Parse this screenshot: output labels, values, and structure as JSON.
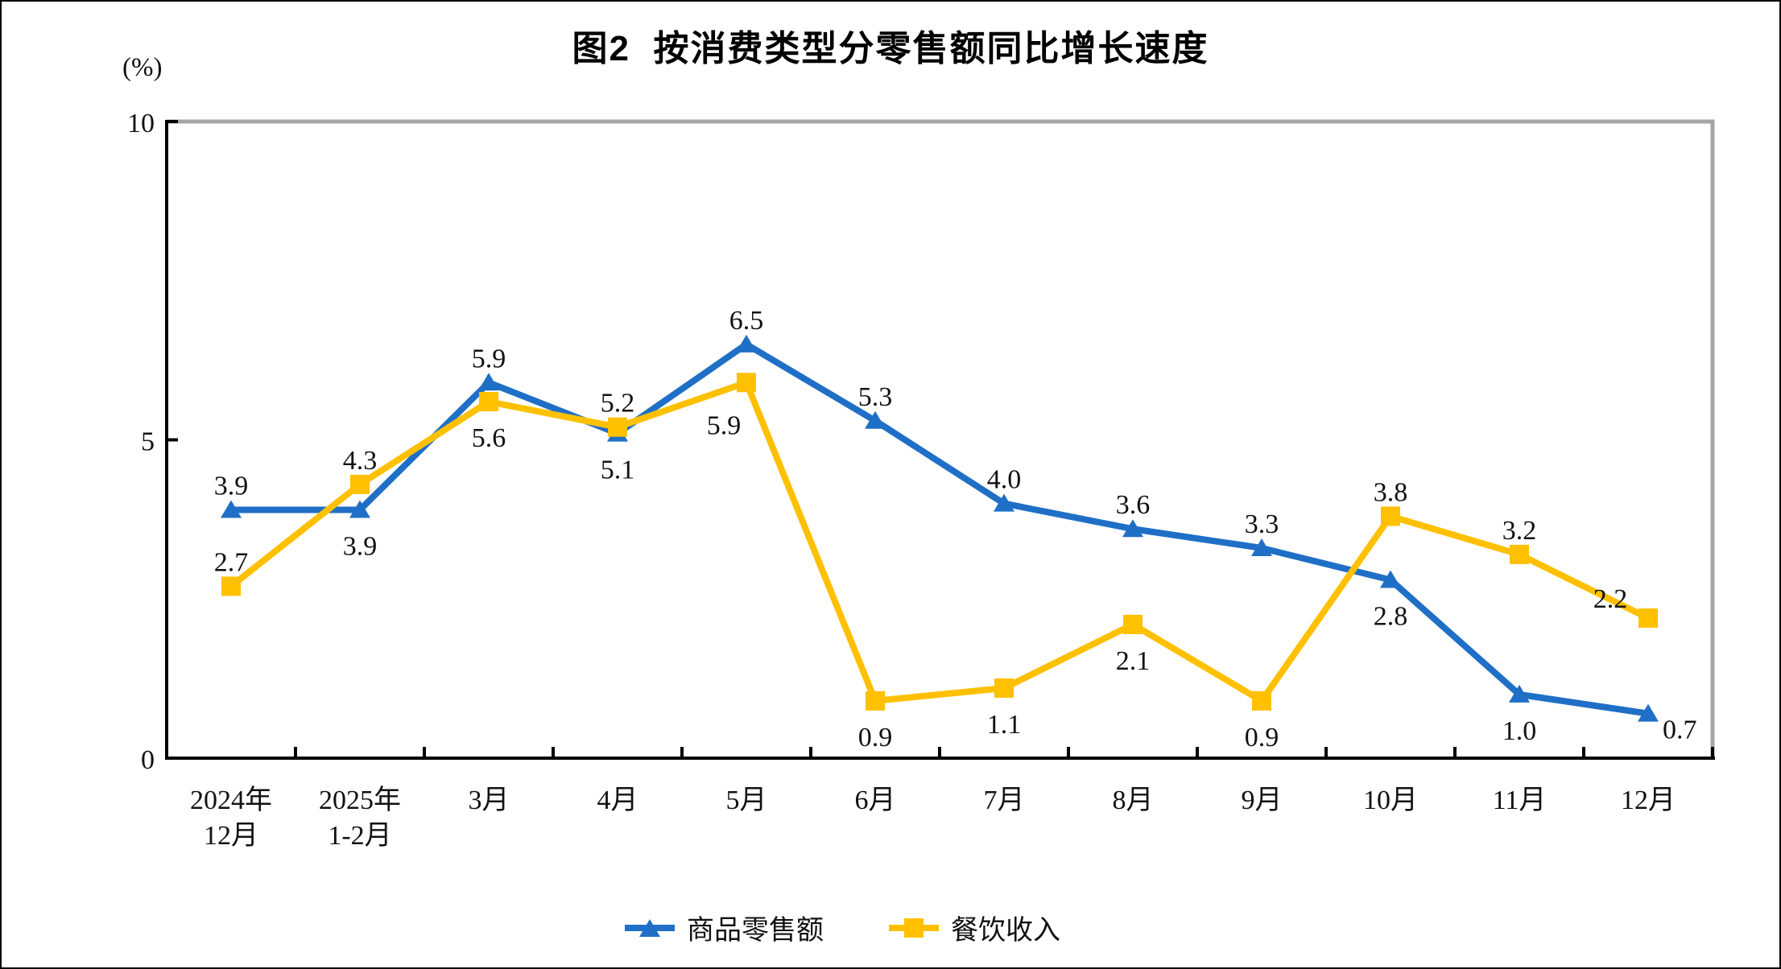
{
  "page": {
    "title": "图2  按消费类型分零售额同比增长速度",
    "y_unit": "(%)"
  },
  "chart_data": {
    "type": "line",
    "title": "图2  按消费类型分零售额同比增长速度",
    "ylabel": "(%)",
    "xlabel": "",
    "ylim": [
      0,
      10
    ],
    "yticks": [
      0,
      5,
      10
    ],
    "grid": false,
    "legend_position": "bottom",
    "axis_color": "#000000",
    "plot_border_color": "#A6A6A6",
    "categories": [
      "2024年\n12月",
      "2025年\n1-2月",
      "3月",
      "4月",
      "5月",
      "6月",
      "7月",
      "8月",
      "9月",
      "10月",
      "11月",
      "12月"
    ],
    "series": [
      {
        "name": "商品零售额",
        "color": "#1F6FC6",
        "marker": "triangle",
        "values": [
          3.9,
          3.9,
          5.9,
          5.1,
          6.5,
          5.3,
          4.0,
          3.6,
          3.3,
          2.8,
          1.0,
          0.7
        ],
        "label_side": [
          "above",
          "below",
          "above",
          "below",
          "above",
          "above",
          "above",
          "above",
          "above",
          "below",
          "below",
          "right"
        ]
      },
      {
        "name": "餐饮收入",
        "color": "#FFC000",
        "marker": "square",
        "values": [
          2.7,
          4.3,
          5.6,
          5.2,
          5.9,
          0.9,
          1.1,
          2.1,
          0.9,
          3.8,
          3.2,
          2.2
        ],
        "label_side": [
          "above",
          "above",
          "below",
          "above",
          "below-left",
          "below",
          "below",
          "below",
          "below",
          "above",
          "above",
          "above-left"
        ]
      }
    ]
  }
}
